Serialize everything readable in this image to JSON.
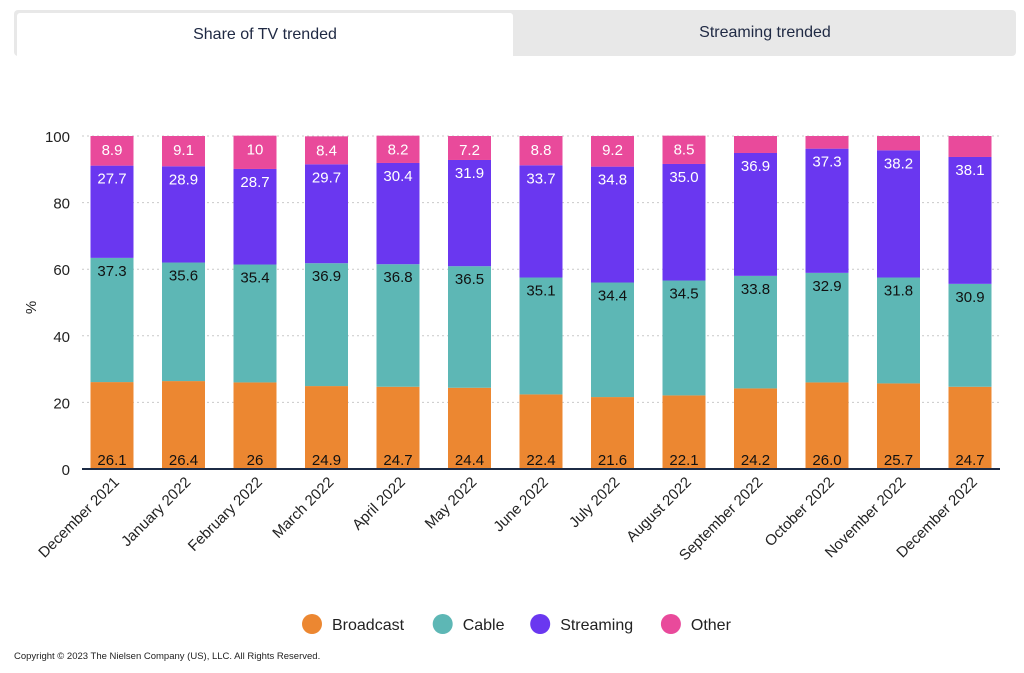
{
  "tabs": [
    {
      "label": "Share of TV trended",
      "active": true
    },
    {
      "label": "Streaming trended",
      "active": false
    }
  ],
  "chart_data": {
    "type": "bar",
    "stacked": true,
    "ylabel": "%",
    "ylim": [
      0,
      100
    ],
    "yticks": [
      0,
      20,
      40,
      60,
      80,
      100
    ],
    "grid": true,
    "legend_position": "bottom",
    "categories": [
      "December 2021",
      "January 2022",
      "February 2022",
      "March 2022",
      "April 2022",
      "May 2022",
      "June 2022",
      "July 2022",
      "August 2022",
      "September 2022",
      "October 2022",
      "November 2022",
      "December 2022"
    ],
    "series": [
      {
        "name": "Broadcast",
        "color": "#ec8731",
        "values": [
          26.1,
          26.4,
          26,
          24.9,
          24.7,
          24.4,
          22.4,
          21.6,
          22.1,
          24.2,
          26.0,
          25.7,
          24.7
        ],
        "labels": [
          "26.1",
          "26.4",
          "26",
          "24.9",
          "24.7",
          "24.4",
          "22.4",
          "21.6",
          "22.1",
          "24.2",
          "26.0",
          "25.7",
          "24.7"
        ],
        "label_color": "#111111"
      },
      {
        "name": "Cable",
        "color": "#5db7b5",
        "values": [
          37.3,
          35.6,
          35.4,
          36.9,
          36.8,
          36.5,
          35.1,
          34.4,
          34.5,
          33.8,
          32.9,
          31.8,
          30.9
        ],
        "labels": [
          "37.3",
          "35.6",
          "35.4",
          "36.9",
          "36.8",
          "36.5",
          "35.1",
          "34.4",
          "34.5",
          "33.8",
          "32.9",
          "31.8",
          "30.9"
        ],
        "label_color": "#111111"
      },
      {
        "name": "Streaming",
        "color": "#6a37f0",
        "values": [
          27.7,
          28.9,
          28.7,
          29.7,
          30.4,
          31.9,
          33.7,
          34.8,
          35.0,
          36.9,
          37.3,
          38.2,
          38.1
        ],
        "labels": [
          "27.7",
          "28.9",
          "28.7",
          "29.7",
          "30.4",
          "31.9",
          "33.7",
          "34.8",
          "35.0",
          "36.9",
          "37.3",
          "38.2",
          "38.1"
        ],
        "label_color": "#ffffff"
      },
      {
        "name": "Other",
        "color": "#e94a9b",
        "values": [
          8.9,
          9.1,
          10,
          8.4,
          8.2,
          7.2,
          8.8,
          9.2,
          8.5,
          5.1,
          3.8,
          4.3,
          6.3
        ],
        "labels": [
          "8.9",
          "9.1",
          "10",
          "8.4",
          "8.2",
          "7.2",
          "8.8",
          "9.2",
          "8.5",
          "",
          "",
          "",
          ""
        ],
        "label_color": "#ffffff"
      }
    ]
  },
  "copyright": "Copyright © 2023 The Nielsen Company (US), LLC. All Rights Reserved."
}
